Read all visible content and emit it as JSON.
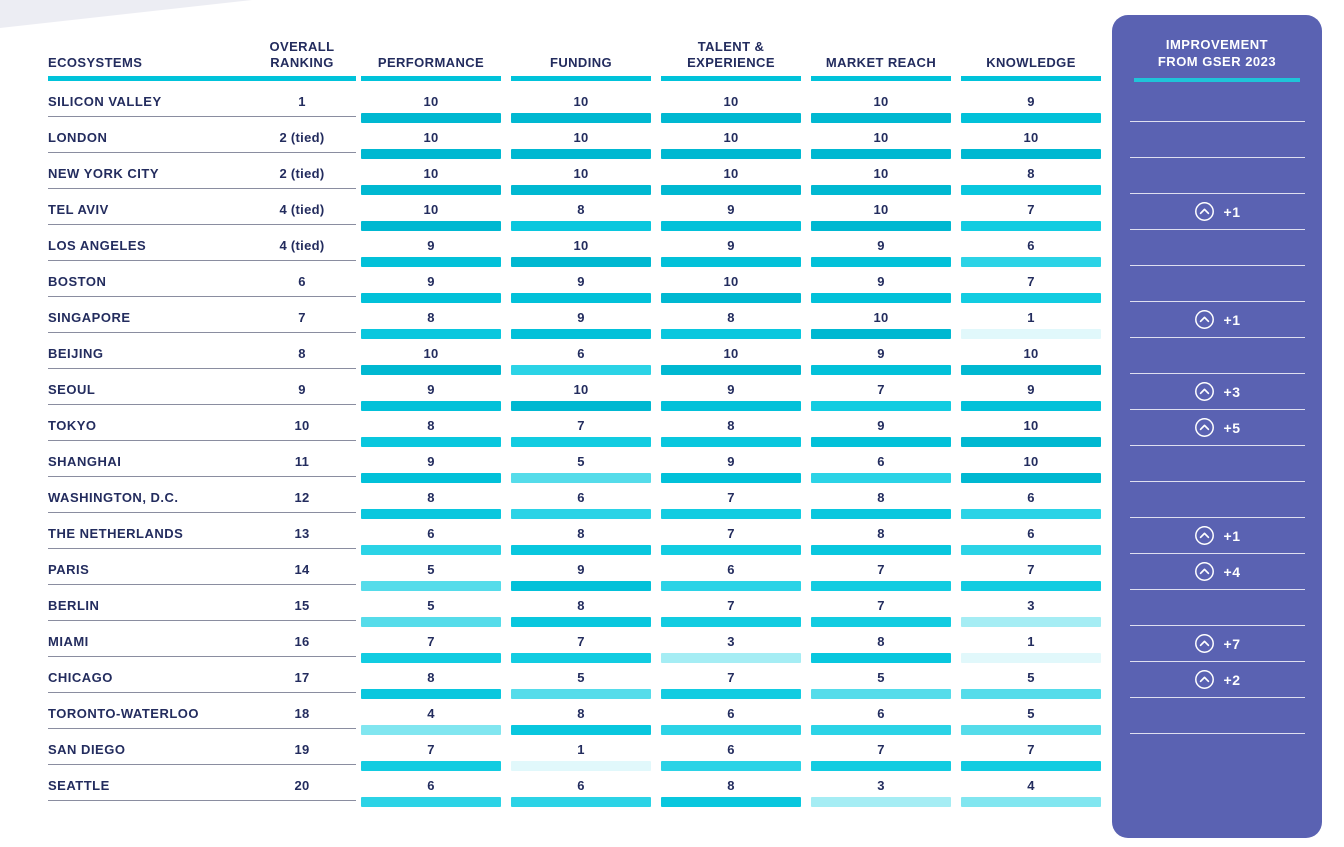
{
  "chart_data": {
    "type": "table",
    "title": "Ecosystem rankings with factor scores",
    "columns": [
      "ECOSYSTEMS",
      "OVERALL RANKING",
      "PERFORMANCE",
      "FUNDING",
      "TALENT & EXPERIENCE",
      "MARKET REACH",
      "KNOWLEDGE",
      "IMPROVEMENT FROM GSER 2023"
    ],
    "score_range": [
      1,
      10
    ],
    "rows": [
      {
        "ecosystem": "SILICON VALLEY",
        "overall_ranking": "1",
        "performance": 10,
        "funding": 10,
        "talent_experience": 10,
        "market_reach": 10,
        "knowledge": 9,
        "improvement_from_gser_2023": null
      },
      {
        "ecosystem": "LONDON",
        "overall_ranking": "2 (tied)",
        "performance": 10,
        "funding": 10,
        "talent_experience": 10,
        "market_reach": 10,
        "knowledge": 10,
        "improvement_from_gser_2023": null
      },
      {
        "ecosystem": "NEW YORK CITY",
        "overall_ranking": "2 (tied)",
        "performance": 10,
        "funding": 10,
        "talent_experience": 10,
        "market_reach": 10,
        "knowledge": 8,
        "improvement_from_gser_2023": null
      },
      {
        "ecosystem": "TEL AVIV",
        "overall_ranking": "4 (tied)",
        "performance": 10,
        "funding": 8,
        "talent_experience": 9,
        "market_reach": 10,
        "knowledge": 7,
        "improvement_from_gser_2023": "+1"
      },
      {
        "ecosystem": "LOS ANGELES",
        "overall_ranking": "4 (tied)",
        "performance": 9,
        "funding": 10,
        "talent_experience": 9,
        "market_reach": 9,
        "knowledge": 6,
        "improvement_from_gser_2023": null
      },
      {
        "ecosystem": "BOSTON",
        "overall_ranking": "6",
        "performance": 9,
        "funding": 9,
        "talent_experience": 10,
        "market_reach": 9,
        "knowledge": 7,
        "improvement_from_gser_2023": null
      },
      {
        "ecosystem": "SINGAPORE",
        "overall_ranking": "7",
        "performance": 8,
        "funding": 9,
        "talent_experience": 8,
        "market_reach": 10,
        "knowledge": 1,
        "improvement_from_gser_2023": "+1"
      },
      {
        "ecosystem": "BEIJING",
        "overall_ranking": "8",
        "performance": 10,
        "funding": 6,
        "talent_experience": 10,
        "market_reach": 9,
        "knowledge": 10,
        "improvement_from_gser_2023": null
      },
      {
        "ecosystem": "SEOUL",
        "overall_ranking": "9",
        "performance": 9,
        "funding": 10,
        "talent_experience": 9,
        "market_reach": 7,
        "knowledge": 9,
        "improvement_from_gser_2023": "+3"
      },
      {
        "ecosystem": "TOKYO",
        "overall_ranking": "10",
        "performance": 8,
        "funding": 7,
        "talent_experience": 8,
        "market_reach": 9,
        "knowledge": 10,
        "improvement_from_gser_2023": "+5"
      },
      {
        "ecosystem": "SHANGHAI",
        "overall_ranking": "11",
        "performance": 9,
        "funding": 5,
        "talent_experience": 9,
        "market_reach": 6,
        "knowledge": 10,
        "improvement_from_gser_2023": null
      },
      {
        "ecosystem": "WASHINGTON, D.C.",
        "overall_ranking": "12",
        "performance": 8,
        "funding": 6,
        "talent_experience": 7,
        "market_reach": 8,
        "knowledge": 6,
        "improvement_from_gser_2023": null
      },
      {
        "ecosystem": "THE NETHERLANDS",
        "overall_ranking": "13",
        "performance": 6,
        "funding": 8,
        "talent_experience": 7,
        "market_reach": 8,
        "knowledge": 6,
        "improvement_from_gser_2023": "+1"
      },
      {
        "ecosystem": "PARIS",
        "overall_ranking": "14",
        "performance": 5,
        "funding": 9,
        "talent_experience": 6,
        "market_reach": 7,
        "knowledge": 7,
        "improvement_from_gser_2023": "+4"
      },
      {
        "ecosystem": "BERLIN",
        "overall_ranking": "15",
        "performance": 5,
        "funding": 8,
        "talent_experience": 7,
        "market_reach": 7,
        "knowledge": 3,
        "improvement_from_gser_2023": null
      },
      {
        "ecosystem": "MIAMI",
        "overall_ranking": "16",
        "performance": 7,
        "funding": 7,
        "talent_experience": 3,
        "market_reach": 8,
        "knowledge": 1,
        "improvement_from_gser_2023": "+7"
      },
      {
        "ecosystem": "CHICAGO",
        "overall_ranking": "17",
        "performance": 8,
        "funding": 5,
        "talent_experience": 7,
        "market_reach": 5,
        "knowledge": 5,
        "improvement_from_gser_2023": "+2"
      },
      {
        "ecosystem": "TORONTO-WATERLOO",
        "overall_ranking": "18",
        "performance": 4,
        "funding": 8,
        "talent_experience": 6,
        "market_reach": 6,
        "knowledge": 5,
        "improvement_from_gser_2023": null
      },
      {
        "ecosystem": "SAN DIEGO",
        "overall_ranking": "19",
        "performance": 7,
        "funding": 1,
        "talent_experience": 6,
        "market_reach": 7,
        "knowledge": 7,
        "improvement_from_gser_2023": null
      },
      {
        "ecosystem": "SEATTLE",
        "overall_ranking": "20",
        "performance": 6,
        "funding": 6,
        "talent_experience": 8,
        "market_reach": 3,
        "knowledge": 4,
        "improvement_from_gser_2023": null
      }
    ]
  },
  "panel": {
    "title_lines": [
      "IMPROVEMENT",
      "FROM GSER 2023"
    ],
    "improvement_icon": "chevron-up-circle-icon"
  },
  "colors": {
    "text_navy": "#232c5e",
    "accent_cyan": "#00c3da",
    "panel_purple": "#5a62b2",
    "divider_gray": "#8a8da0",
    "panel_divider": "rgba(255,255,255,0.8)",
    "corner_gray": "#ecedf3",
    "score_scale": {
      "1": "#e1f8fb",
      "2": "#c3f1f7",
      "3": "#a5edf4",
      "4": "#81e6f0",
      "5": "#55dcea",
      "6": "#2bd3e6",
      "7": "#12cce1",
      "8": "#09c7de",
      "9": "#02c1d9",
      "10": "#00b8d1"
    }
  }
}
